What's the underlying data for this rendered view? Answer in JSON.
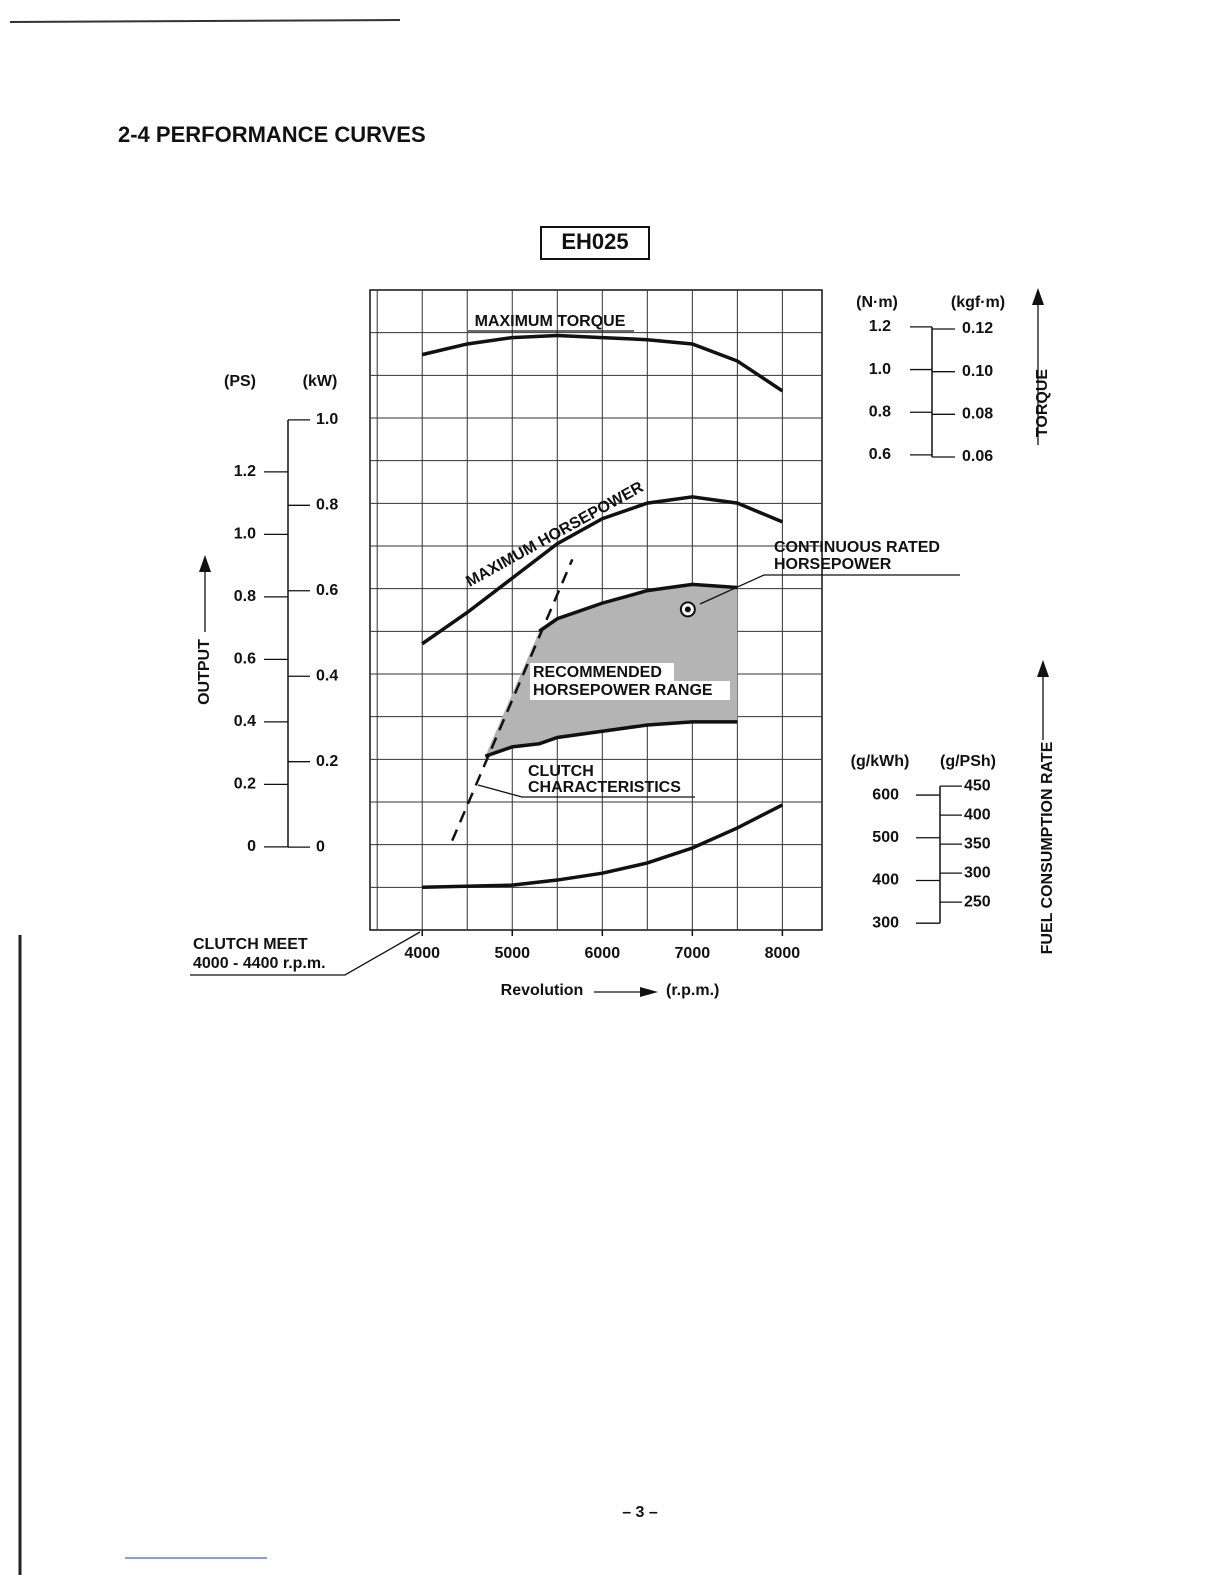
{
  "section_title": "2-4 PERFORMANCE CURVES",
  "page_number": "– 3 –",
  "chart_data": {
    "type": "line",
    "title": "EH025",
    "x_label": "Revolution",
    "x_unit": "(r.p.m.)",
    "xlim": [
      3420,
      8440
    ],
    "xticks": [
      4000,
      5000,
      6000,
      7000,
      8000
    ],
    "grid": true,
    "color": "#111111",
    "band_color": "#b4b4b4",
    "axes": [
      {
        "label": "OUTPUT",
        "unit": "(PS)",
        "ylim": [
          -0.266,
          1.782
        ],
        "yticks": [
          0,
          0.2,
          0.4,
          0.6,
          0.8,
          {
            "value": 1,
            "label": "1.0"
          },
          1.2
        ]
      },
      {
        "unit": "(kW)",
        "ylim": [
          -0.194,
          1.304
        ],
        "yticks": [
          0,
          0.2,
          0.4,
          0.6,
          0.8,
          {
            "value": 1,
            "label": "1.0"
          }
        ]
      },
      {
        "label": "TORQUE",
        "unit": "(N·m)",
        "ylim": [
          -1.627,
          1.373
        ],
        "yticks": [
          0.6,
          0.8,
          {
            "value": 1,
            "label": "1.0"
          },
          1.2
        ]
      },
      {
        "unit": "(kgf·m)",
        "ylim": [
          -0.1618,
          0.1383
        ],
        "yticks": [
          0.06,
          0.08,
          {
            "value": 0.1,
            "label": "0.10"
          },
          0.12
        ]
      },
      {
        "label": "FUEL CONSUMPTION RATE",
        "unit": "(g/kWh)",
        "ylim": [
          284,
          1783
        ],
        "yticks": [
          300,
          400,
          500,
          600
        ]
      },
      {
        "unit": "(g/PSh)",
        "ylim": [
          202,
          1305
        ],
        "yticks": [
          250,
          300,
          350,
          400,
          450
        ]
      }
    ],
    "series": [
      {
        "name": "MAXIMUM TORQUE",
        "axis": 2,
        "x": [
          4000,
          4500,
          5000,
          5500,
          6000,
          6500,
          7000,
          7500,
          8000
        ],
        "values": [
          1.07,
          1.12,
          1.15,
          1.16,
          1.15,
          1.14,
          1.12,
          1.04,
          0.9
        ]
      },
      {
        "name": "MAXIMUM HORSEPOWER",
        "axis": 0,
        "x": [
          4000,
          4500,
          5000,
          5500,
          6000,
          6500,
          7000,
          7500,
          8000
        ],
        "values": [
          0.65,
          0.75,
          0.86,
          0.97,
          1.05,
          1.1,
          1.12,
          1.1,
          1.04
        ]
      },
      {
        "name": [
          "RECOMMENDED",
          "HORSEPOWER RANGE"
        ],
        "axis": 0,
        "x": [
          4700,
          5000,
          5300,
          5500,
          6000,
          6500,
          7000,
          7500
        ],
        "upper": [
          null,
          null,
          0.69,
          0.73,
          0.78,
          0.82,
          0.84,
          0.83
        ],
        "lower": [
          0.29,
          0.32,
          0.33,
          0.35,
          0.37,
          0.39,
          0.4,
          0.4
        ]
      },
      {
        "axis": 4,
        "x": [
          4000,
          5000,
          5500,
          6000,
          6500,
          7000,
          7500,
          8000
        ],
        "values": [
          384,
          389,
          401,
          417,
          441,
          476,
          523,
          577
        ]
      },
      {
        "name": [
          "CLUTCH",
          "CHARACTERISTICS"
        ],
        "axis": 0,
        "dashed": true,
        "x": [
          4333,
          5667
        ],
        "values": [
          0.02,
          0.92
        ]
      }
    ],
    "rated_point": {
      "name": [
        "CONTINUOUS RATED",
        "HORSEPOWER"
      ],
      "axis": 0,
      "x": 6950,
      "value": 0.76
    },
    "clutch_meet": [
      "CLUTCH MEET",
      "4000 - 4400 r.p.m."
    ]
  }
}
